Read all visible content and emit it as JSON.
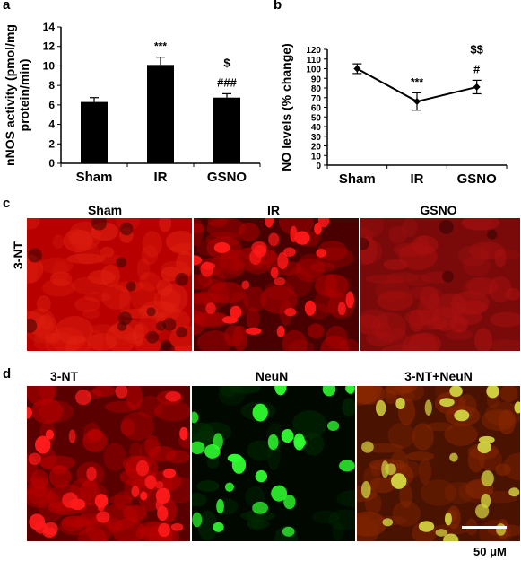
{
  "panels": {
    "a": {
      "letter": "a"
    },
    "b": {
      "letter": "b"
    },
    "c": {
      "letter": "c",
      "columns": [
        "Sham",
        "IR",
        "GSNO"
      ],
      "row_label": "3-NT"
    },
    "d": {
      "letter": "d",
      "columns": [
        "3-NT",
        "NeuN",
        "3-NT+NeuN"
      ],
      "scale_label": "50 μM"
    }
  },
  "colors": {
    "red_stain": "#e00000",
    "green_stain": "#20d020",
    "bar": "#000000"
  },
  "chart_data": [
    {
      "type": "bar",
      "categories": [
        "Sham",
        "IR",
        "GSNO"
      ],
      "values": [
        6.3,
        10.1,
        6.75
      ],
      "errors": [
        0.45,
        0.8,
        0.4
      ],
      "annotations": [
        [
          ""
        ],
        [
          "***"
        ],
        [
          "###",
          "$"
        ]
      ],
      "ylabel": "nNOS activity (pmol/mg protein/min)",
      "ylim": [
        0,
        14
      ],
      "yticks": [
        0,
        2,
        4,
        6,
        8,
        10,
        12,
        14
      ]
    },
    {
      "type": "line",
      "categories": [
        "Sham",
        "IR",
        "GSNO"
      ],
      "values": [
        100,
        66,
        81
      ],
      "errors": [
        5,
        9,
        7
      ],
      "annotations": [
        [
          ""
        ],
        [
          "***"
        ],
        [
          "#",
          "$$"
        ]
      ],
      "ylabel": "NO levels (% change)",
      "ylim": [
        0,
        120
      ],
      "yticks": [
        0,
        10,
        20,
        30,
        40,
        50,
        60,
        70,
        80,
        90,
        100,
        110,
        120
      ]
    }
  ]
}
